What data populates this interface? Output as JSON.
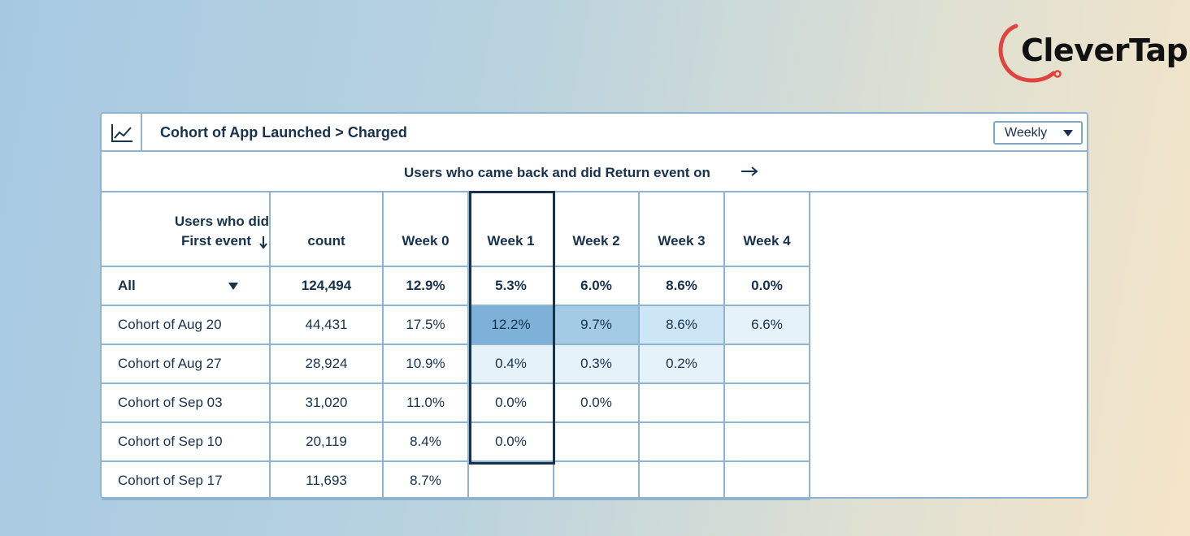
{
  "brand": {
    "name": "CleverTap",
    "arc_color": "#e0443f"
  },
  "panel": {
    "title": "Cohort of App Launched > Charged",
    "chart_icon": "line-chart-icon",
    "dropdown": {
      "selected": "Weekly"
    },
    "subheader": "Users who came back and did Return event on"
  },
  "table": {
    "first_col_header_line1": "Users who did",
    "first_col_header_line2": "First event",
    "columns": [
      "count",
      "Week 0",
      "Week 1",
      "Week 2",
      "Week 3",
      "Week 4"
    ],
    "all_row": {
      "label": "All",
      "values": [
        "124,494",
        "12.9%",
        "5.3%",
        "6.0%",
        "8.6%",
        "0.0%"
      ]
    },
    "rows": [
      {
        "label": "Cohort of Aug 20",
        "values": [
          "44,431",
          "17.5%",
          "12.2%",
          "9.7%",
          "8.6%",
          "6.6%"
        ]
      },
      {
        "label": "Cohort of Aug 27",
        "values": [
          "28,924",
          "10.9%",
          "0.4%",
          "0.3%",
          "0.2%",
          ""
        ]
      },
      {
        "label": "Cohort of Sep 03",
        "values": [
          "31,020",
          "11.0%",
          "0.0%",
          "0.0%",
          "",
          ""
        ]
      },
      {
        "label": "Cohort of Sep 10",
        "values": [
          "20,119",
          "8.4%",
          "0.0%",
          "",
          "",
          ""
        ]
      },
      {
        "label": "Cohort of Sep 17",
        "values": [
          "11,693",
          "8.7%",
          "",
          "",
          "",
          ""
        ]
      }
    ],
    "heat_colors": {
      "r0c2": "#7eb1d8",
      "r0c3": "#a3cbe6",
      "r0c4": "#cde6f6",
      "r0c5": "#e6f2fa",
      "r1c2": "#e6f2fa",
      "r1c3": "#e6f2fa",
      "r1c4": "#e6f2fa"
    }
  }
}
